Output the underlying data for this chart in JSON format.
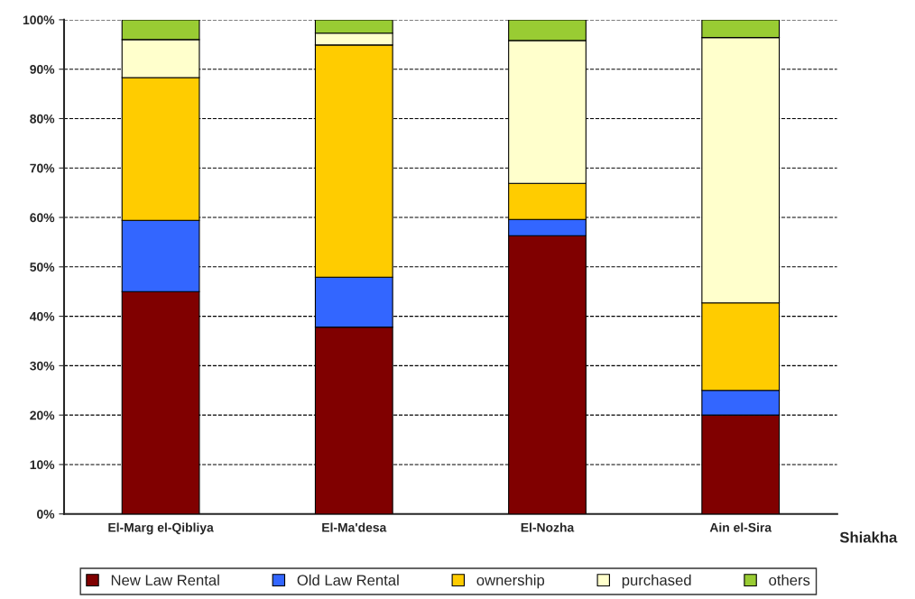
{
  "chart_data": {
    "type": "bar",
    "stacked": true,
    "xlabel": "Shiakha",
    "categories": [
      "El-Marg el-Qibliya",
      "El-Ma'desa",
      "El-Nozha",
      "Ain el-Sira"
    ],
    "series": [
      {
        "name": "New Law Rental",
        "color": "#800000",
        "values": [
          45.0,
          37.8,
          56.3,
          20.0
        ]
      },
      {
        "name": "Old Law Rental",
        "color": "#3366ff",
        "values": [
          14.4,
          10.1,
          3.3,
          5.0
        ]
      },
      {
        "name": "ownership",
        "color": "#ffcc00",
        "values": [
          28.9,
          47.0,
          7.3,
          17.7
        ]
      },
      {
        "name": "purchased",
        "color": "#ffffcc",
        "values": [
          7.7,
          2.4,
          28.9,
          53.7
        ]
      },
      {
        "name": "others",
        "color": "#99cc33",
        "values": [
          4.0,
          2.7,
          4.2,
          3.6
        ]
      }
    ],
    "ylim": [
      0,
      100
    ],
    "yticks": [
      {
        "value": 0,
        "label": "0%"
      },
      {
        "value": 10,
        "label": "10%"
      },
      {
        "value": 20,
        "label": "20%"
      },
      {
        "value": 30,
        "label": "30%"
      },
      {
        "value": 40,
        "label": "40%"
      },
      {
        "value": 50,
        "label": "50%"
      },
      {
        "value": 60,
        "label": "60%"
      },
      {
        "value": 70,
        "label": "70%"
      },
      {
        "value": 80,
        "label": "80%"
      },
      {
        "value": 90,
        "label": "90%"
      },
      {
        "value": 100,
        "label": "100%"
      }
    ],
    "grid": "y",
    "legend": "bottom"
  }
}
